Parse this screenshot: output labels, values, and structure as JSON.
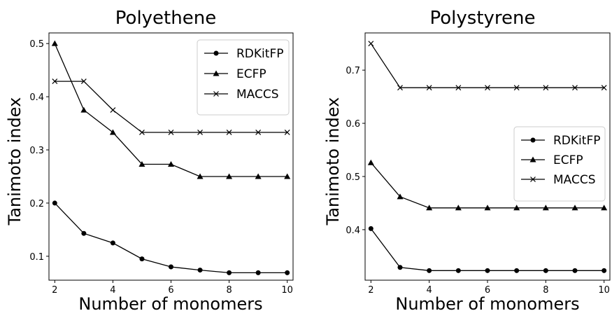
{
  "chart_data": [
    {
      "type": "line",
      "title": "Polyethene",
      "xlabel": "Number of monomers",
      "ylabel": "Tanimoto index",
      "x": [
        2,
        3,
        4,
        5,
        6,
        7,
        8,
        9,
        10
      ],
      "xticks": [
        2,
        4,
        6,
        8,
        10
      ],
      "xlim": [
        1.8,
        10.2
      ],
      "ylim": [
        0.055,
        0.52
      ],
      "yticks": [
        0.1,
        0.2,
        0.3,
        0.4,
        0.5
      ],
      "ytick_labels": [
        "0.1",
        "0.2",
        "0.3",
        "0.4",
        "0.5"
      ],
      "legend_position": "top-right",
      "series": [
        {
          "name": "RDKitFP",
          "marker": "circle",
          "values": [
            0.2,
            0.143,
            0.125,
            0.095,
            0.08,
            0.074,
            0.069,
            0.069,
            0.069
          ]
        },
        {
          "name": "ECFP",
          "marker": "triangle",
          "values": [
            0.5,
            0.375,
            0.333,
            0.273,
            0.273,
            0.25,
            0.25,
            0.25,
            0.25
          ]
        },
        {
          "name": "MACCS",
          "marker": "x",
          "values": [
            0.429,
            0.429,
            0.375,
            0.333,
            0.333,
            0.333,
            0.333,
            0.333,
            0.333
          ]
        }
      ]
    },
    {
      "type": "line",
      "title": "Polystyrene",
      "xlabel": "Number of monomers",
      "ylabel": "Tanimoto index",
      "x": [
        2,
        3,
        4,
        5,
        6,
        7,
        8,
        9,
        10
      ],
      "xticks": [
        2,
        4,
        6,
        8,
        10
      ],
      "xlim": [
        1.8,
        10.2
      ],
      "ylim": [
        0.305,
        0.77
      ],
      "yticks": [
        0.4,
        0.5,
        0.6,
        0.7
      ],
      "ytick_labels": [
        "0.4",
        "0.5",
        "0.6",
        "0.7"
      ],
      "legend_position": "center-right",
      "series": [
        {
          "name": "RDKitFP",
          "marker": "circle",
          "values": [
            0.402,
            0.329,
            0.323,
            0.323,
            0.323,
            0.323,
            0.323,
            0.323,
            0.323
          ]
        },
        {
          "name": "ECFP",
          "marker": "triangle",
          "values": [
            0.526,
            0.462,
            0.441,
            0.441,
            0.441,
            0.441,
            0.441,
            0.441,
            0.441
          ]
        },
        {
          "name": "MACCS",
          "marker": "x",
          "values": [
            0.75,
            0.667,
            0.667,
            0.667,
            0.667,
            0.667,
            0.667,
            0.667,
            0.667
          ]
        }
      ]
    }
  ]
}
